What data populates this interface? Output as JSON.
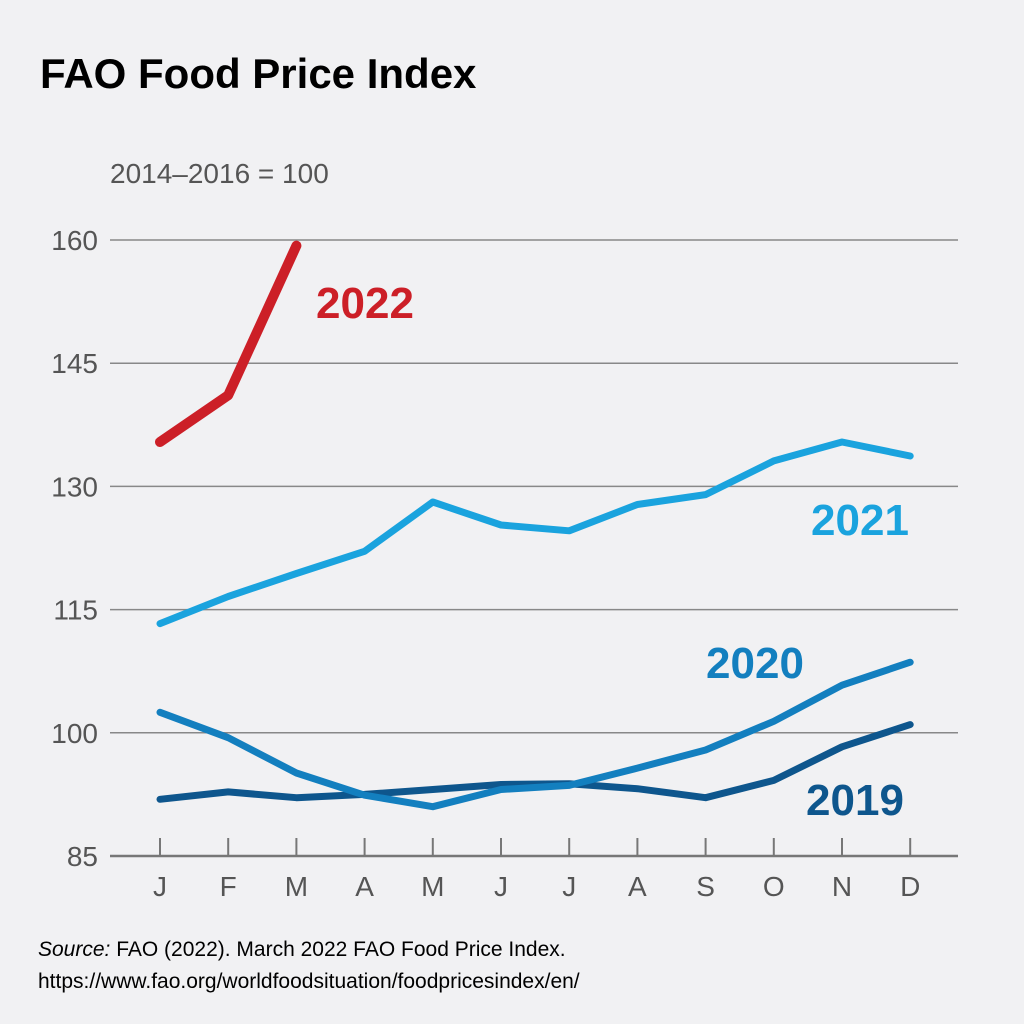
{
  "title": "FAO Food Price Index",
  "subtitle": "2014–2016 = 100",
  "source": {
    "label": "Source:",
    "line1": " FAO (2022). March 2022 FAO Food Price Index.",
    "line2": "https://www.fao.org/worldfoodsituation/foodpricesindex/en/"
  },
  "chart_data": {
    "type": "line",
    "title": "FAO Food Price Index",
    "subtitle": "2014–2016 = 100",
    "xlabel": "",
    "ylabel": "",
    "categories": [
      "J",
      "F",
      "M",
      "A",
      "M",
      "J",
      "J",
      "A",
      "S",
      "O",
      "N",
      "D"
    ],
    "ylim": [
      85,
      160
    ],
    "yticks": [
      85,
      100,
      115,
      130,
      145,
      160
    ],
    "grid": true,
    "legend": "inline labels",
    "series": [
      {
        "name": "2022",
        "color": "#cc1f27",
        "values": [
          135.4,
          141.1,
          159.3,
          null,
          null,
          null,
          null,
          null,
          null,
          null,
          null,
          null
        ]
      },
      {
        "name": "2021",
        "color": "#1aa3de",
        "values": [
          113.3,
          116.6,
          119.4,
          122.1,
          128.1,
          125.3,
          124.6,
          127.8,
          129.0,
          133.1,
          135.4,
          133.7
        ]
      },
      {
        "name": "2020",
        "color": "#137fbf",
        "values": [
          102.5,
          99.4,
          95.1,
          92.4,
          91.0,
          93.1,
          93.6,
          95.7,
          97.9,
          101.4,
          105.8,
          108.6
        ]
      },
      {
        "name": "2019",
        "color": "#0e568d",
        "values": [
          91.9,
          92.8,
          92.1,
          92.5,
          93.1,
          93.7,
          93.8,
          93.2,
          92.1,
          94.2,
          98.3,
          101.0
        ]
      }
    ]
  }
}
